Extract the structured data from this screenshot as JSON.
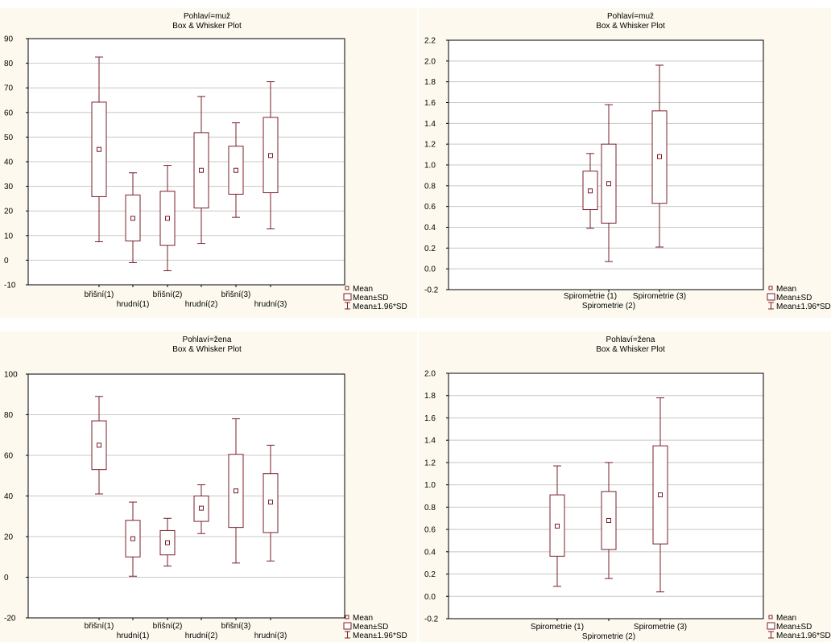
{
  "chart_data": [
    {
      "type": "box",
      "title": "Pohlaví=muž",
      "subtitle": "Box & Whisker Plot",
      "ylim": [
        -10,
        90
      ],
      "yticks": [
        -10,
        0,
        10,
        20,
        30,
        40,
        50,
        60,
        70,
        80,
        90
      ],
      "grid": true,
      "categories": [
        "břišní(1)",
        "hrudní(1)",
        "břišní(2)",
        "hrudní(2)",
        "břišní(3)",
        "hrudní(3)"
      ],
      "boxes": [
        {
          "mean": 45,
          "sd_low": 25.8,
          "sd_high": 64.2,
          "wlow": 7.5,
          "whigh": 82.5
        },
        {
          "mean": 17,
          "sd_low": 7.8,
          "sd_high": 26.5,
          "wlow": -1,
          "whigh": 35.5
        },
        {
          "mean": 17,
          "sd_low": 6,
          "sd_high": 28,
          "wlow": -4.3,
          "whigh": 38.5
        },
        {
          "mean": 36.5,
          "sd_low": 21.2,
          "sd_high": 51.8,
          "wlow": 6.8,
          "whigh": 66.5
        },
        {
          "mean": 36.5,
          "sd_low": 26.8,
          "sd_high": 46.3,
          "wlow": 17.4,
          "whigh": 55.8
        },
        {
          "mean": 42.5,
          "sd_low": 27.4,
          "sd_high": 58,
          "wlow": 12.7,
          "whigh": 72.5
        }
      ],
      "legend": [
        "Mean",
        "Mean±SD",
        "Mean±1.96*SD"
      ]
    },
    {
      "type": "box",
      "title": "Pohlaví=muž",
      "subtitle": "Box & Whisker Plot",
      "ylim": [
        -0.2,
        2.2
      ],
      "yticks": [
        -0.2,
        0.0,
        0.2,
        0.4,
        0.6,
        0.8,
        1.0,
        1.2,
        1.4,
        1.6,
        1.8,
        2.0,
        2.2
      ],
      "grid": true,
      "categories": [
        "Spirometrie (1)",
        "Spirometrie (2)",
        "Spirometrie (3)"
      ],
      "boxes": [
        {
          "mean": 0.75,
          "sd_low": 0.57,
          "sd_high": 0.94,
          "wlow": 0.39,
          "whigh": 1.11
        },
        {
          "mean": 0.82,
          "sd_low": 0.44,
          "sd_high": 1.2,
          "wlow": 0.07,
          "whigh": 1.58
        },
        {
          "mean": 1.08,
          "sd_low": 0.63,
          "sd_high": 1.52,
          "wlow": 0.21,
          "whigh": 1.96
        }
      ],
      "legend": [
        "Mean",
        "Mean±SD",
        "Mean±1.96*SD"
      ]
    },
    {
      "type": "box",
      "title": "Pohlaví=žena",
      "subtitle": "Box & Whisker Plot",
      "ylim": [
        -20,
        100
      ],
      "yticks": [
        -20,
        0,
        20,
        40,
        60,
        80,
        100
      ],
      "grid": true,
      "categories": [
        "břišní(1)",
        "hrudní(1)",
        "břišní(2)",
        "hrudní(2)",
        "břišní(3)",
        "hrudní(3)"
      ],
      "boxes": [
        {
          "mean": 65,
          "sd_low": 53,
          "sd_high": 77,
          "wlow": 41,
          "whigh": 89
        },
        {
          "mean": 19,
          "sd_low": 10,
          "sd_high": 28,
          "wlow": 0.5,
          "whigh": 37
        },
        {
          "mean": 17,
          "sd_low": 11,
          "sd_high": 23,
          "wlow": 5.5,
          "whigh": 29
        },
        {
          "mean": 34,
          "sd_low": 27.5,
          "sd_high": 40,
          "wlow": 21.5,
          "whigh": 45.5
        },
        {
          "mean": 42.5,
          "sd_low": 24.5,
          "sd_high": 60.5,
          "wlow": 7,
          "whigh": 78
        },
        {
          "mean": 37,
          "sd_low": 22,
          "sd_high": 51,
          "wlow": 8,
          "whigh": 65
        }
      ],
      "legend": [
        "Mean",
        "Mean±SD",
        "Mean±1.96*SD"
      ]
    },
    {
      "type": "box",
      "title": "Pohlaví=žena",
      "subtitle": "Box & Whisker Plot",
      "ylim": [
        -0.2,
        2.0
      ],
      "yticks": [
        -0.2,
        0.0,
        0.2,
        0.4,
        0.6,
        0.8,
        1.0,
        1.2,
        1.4,
        1.6,
        1.8,
        2.0
      ],
      "grid": true,
      "categories": [
        "Spirometrie (1)",
        "Spirometrie (2)",
        "Spirometrie (3)"
      ],
      "boxes": [
        {
          "mean": 0.63,
          "sd_low": 0.36,
          "sd_high": 0.91,
          "wlow": 0.09,
          "whigh": 1.17
        },
        {
          "mean": 0.68,
          "sd_low": 0.42,
          "sd_high": 0.94,
          "wlow": 0.16,
          "whigh": 1.2
        },
        {
          "mean": 0.91,
          "sd_low": 0.47,
          "sd_high": 1.35,
          "wlow": 0.04,
          "whigh": 1.78
        }
      ],
      "legend": [
        "Mean",
        "Mean±SD",
        "Mean±1.96*SD"
      ]
    }
  ]
}
